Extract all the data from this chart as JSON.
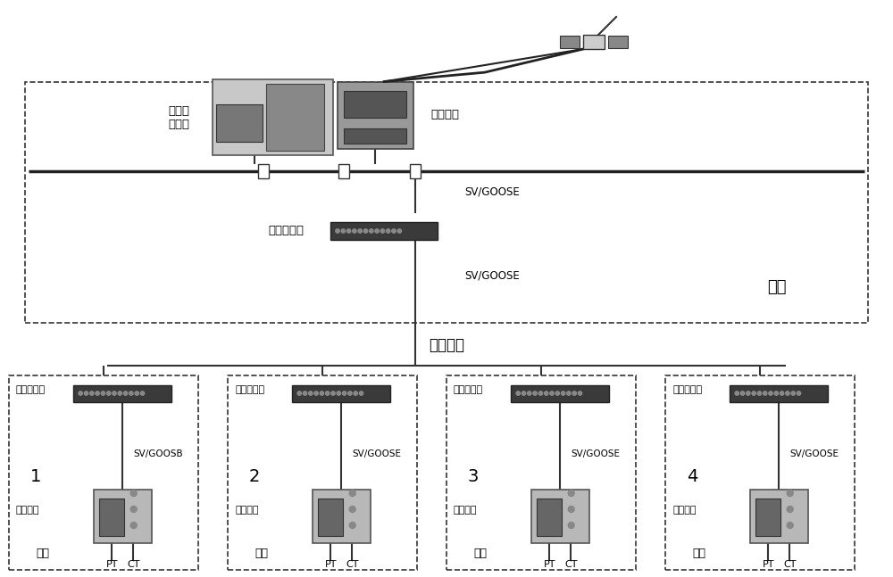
{
  "bg_color": "#ffffff",
  "indoor_label": "室内",
  "single_mode_fiber": "单模光纤",
  "central_ctrl": "集中控\n制单元",
  "time_sync": "对时装置",
  "ring_switch": "环网交换机",
  "collection_unit": "采集单元",
  "outdoor": "室外",
  "sv_goose": "SV/GOOSE",
  "sv_goosb": "SV/GOOSB",
  "pt": "PT",
  "ct": "CT",
  "outdoor_nums": [
    "1",
    "2",
    "3",
    "4"
  ],
  "outdoor_sv": [
    "SV/GOOSB",
    "SV/GOOSE",
    "SV/GOOSE",
    "SV/GOOSE"
  ]
}
